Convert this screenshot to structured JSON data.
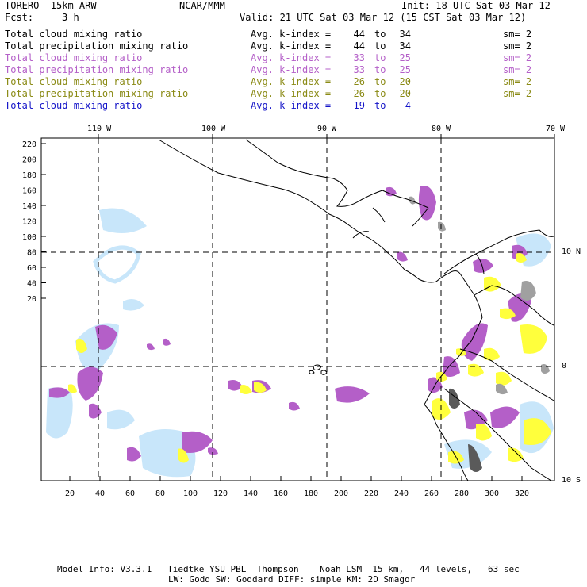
{
  "header": {
    "model": "TORERO  15km ARW",
    "org": "NCAR/MMM",
    "init": "Init: 18 UTC Sat 03 Mar 12",
    "fcst_label": "Fcst:",
    "fcst_value": "3 h",
    "valid": "Valid: 21 UTC Sat 03 Mar 12 (15 CST Sat 03 Mar 12)"
  },
  "legend": [
    {
      "field": "Total cloud mixing ratio",
      "kindex": "Avg. k-index =",
      "from": "44",
      "to_word": "to",
      "to": "34",
      "sm": "sm= 2",
      "color": "#000000"
    },
    {
      "field": "Total precipitation mixing ratio",
      "kindex": "Avg. k-index =",
      "from": "44",
      "to_word": "to",
      "to": "34",
      "sm": "sm= 2",
      "color": "#000000"
    },
    {
      "field": "Total cloud mixing ratio",
      "kindex": "Avg. k-index =",
      "from": "33",
      "to_word": "to",
      "to": "25",
      "sm": "sm= 2",
      "color": "#b45fc8"
    },
    {
      "field": "Total precipitation mixing ratio",
      "kindex": "Avg. k-index =",
      "from": "33",
      "to_word": "to",
      "to": "25",
      "sm": "sm= 2",
      "color": "#b45fc8"
    },
    {
      "field": "Total cloud mixing ratio",
      "kindex": "Avg. k-index =",
      "from": "26",
      "to_word": "to",
      "to": "20",
      "sm": "sm= 2",
      "color": "#8a8a14"
    },
    {
      "field": "Total precipitation mixing ratio",
      "kindex": "Avg. k-index =",
      "from": "26",
      "to_word": "to",
      "to": "20",
      "sm": "sm= 2",
      "color": "#8a8a14"
    },
    {
      "field": "Total cloud mixing ratio",
      "kindex": "Avg. k-index =",
      "from": "19",
      "to_word": "to",
      "to": "4",
      "sm": "",
      "color": "#1414c8"
    }
  ],
  "map": {
    "lon_labels": [
      "110 W",
      "100 W",
      "90 W",
      "80 W",
      "70 W"
    ],
    "lat_labels": [
      "10 N",
      "0",
      "10 S"
    ],
    "y_ticks": [
      "220",
      "200",
      "180",
      "160",
      "140",
      "120",
      "100",
      "80",
      "60",
      "40",
      "20"
    ],
    "x_ticks": [
      "20",
      "40",
      "60",
      "80",
      "100",
      "120",
      "140",
      "160",
      "180",
      "200",
      "220",
      "240",
      "260",
      "280",
      "300",
      "320"
    ],
    "colors": {
      "purple": "#b45fc8",
      "yellow": "#ffff3c",
      "lightblue": "#c8e6fa",
      "gray": "#a0a0a0",
      "darkgray": "#5a5a5a"
    }
  },
  "footer": {
    "line1": "Model Info: V3.3.1   Tiedtke YSU PBL  Thompson    Noah LSM  15 km,   44 levels,   63 sec",
    "line2": "LW: Godd SW: Goddard DIFF: simple KM: 2D Smagor"
  }
}
